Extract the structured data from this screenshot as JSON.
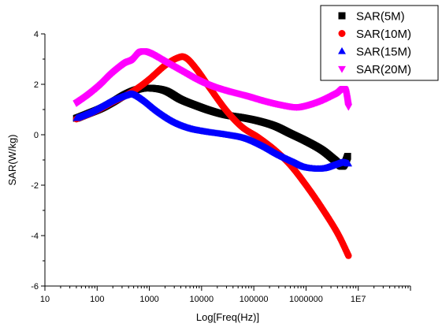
{
  "chart_data": {
    "type": "line",
    "xlabel": "Log[Freq(Hz)]",
    "ylabel": "SAR(W/kg)",
    "xscale": "log",
    "xlim": [
      10,
      100000000
    ],
    "ylim": [
      -6,
      4
    ],
    "grid": false,
    "legend_position": "top-right",
    "x_ticks": [
      {
        "value": 10,
        "label": "10"
      },
      {
        "value": 100,
        "label": "100"
      },
      {
        "value": 1000,
        "label": "1000"
      },
      {
        "value": 10000,
        "label": "10000"
      },
      {
        "value": 100000,
        "label": "100000"
      },
      {
        "value": 1000000,
        "label": "1000000"
      },
      {
        "value": 10000000,
        "label": "1E7"
      }
    ],
    "y_ticks": [
      {
        "value": -6,
        "label": "-6"
      },
      {
        "value": -4,
        "label": "-4"
      },
      {
        "value": -2,
        "label": "-2"
      },
      {
        "value": 0,
        "label": "0"
      },
      {
        "value": 2,
        "label": "2"
      },
      {
        "value": 4,
        "label": "4"
      }
    ],
    "series": [
      {
        "name": "SAR(5M)",
        "color": "#000000",
        "marker": "square",
        "points": [
          [
            40,
            0.65
          ],
          [
            70,
            0.85
          ],
          [
            120,
            1.05
          ],
          [
            200,
            1.3
          ],
          [
            350,
            1.6
          ],
          [
            600,
            1.8
          ],
          [
            1000,
            1.85
          ],
          [
            2000,
            1.75
          ],
          [
            4000,
            1.4
          ],
          [
            8000,
            1.15
          ],
          [
            15000,
            0.95
          ],
          [
            30000,
            0.78
          ],
          [
            60000,
            0.68
          ],
          [
            120000,
            0.55
          ],
          [
            250000,
            0.35
          ],
          [
            500000,
            0.05
          ],
          [
            1000000,
            -0.25
          ],
          [
            2000000,
            -0.6
          ],
          [
            3500000,
            -1.0
          ],
          [
            5000000,
            -1.25
          ],
          [
            6300000,
            -0.85
          ]
        ]
      },
      {
        "name": "SAR(10M)",
        "color": "#ff0000",
        "marker": "circle",
        "points": [
          [
            40,
            0.62
          ],
          [
            70,
            0.82
          ],
          [
            120,
            1.05
          ],
          [
            200,
            1.3
          ],
          [
            350,
            1.55
          ],
          [
            600,
            1.85
          ],
          [
            1000,
            2.2
          ],
          [
            2000,
            2.75
          ],
          [
            3500,
            3.05
          ],
          [
            5000,
            3.05
          ],
          [
            8000,
            2.6
          ],
          [
            15000,
            1.8
          ],
          [
            30000,
            0.95
          ],
          [
            60000,
            0.3
          ],
          [
            120000,
            -0.1
          ],
          [
            250000,
            -0.6
          ],
          [
            500000,
            -1.2
          ],
          [
            1000000,
            -2.0
          ],
          [
            2000000,
            -2.9
          ],
          [
            4000000,
            -3.9
          ],
          [
            6500000,
            -4.8
          ]
        ]
      },
      {
        "name": "SAR(15M)",
        "color": "#0000ff",
        "marker": "triangle-up",
        "points": [
          [
            40,
            0.65
          ],
          [
            70,
            0.85
          ],
          [
            120,
            1.1
          ],
          [
            200,
            1.35
          ],
          [
            350,
            1.55
          ],
          [
            500,
            1.6
          ],
          [
            800,
            1.35
          ],
          [
            1500,
            0.9
          ],
          [
            3000,
            0.5
          ],
          [
            6000,
            0.25
          ],
          [
            12000,
            0.12
          ],
          [
            30000,
            0.0
          ],
          [
            70000,
            -0.15
          ],
          [
            150000,
            -0.45
          ],
          [
            300000,
            -0.8
          ],
          [
            600000,
            -1.1
          ],
          [
            1000000,
            -1.3
          ],
          [
            2000000,
            -1.35
          ],
          [
            3500000,
            -1.2
          ],
          [
            5000000,
            -1.1
          ],
          [
            6500000,
            -1.15
          ]
        ]
      },
      {
        "name": "SAR(20M)",
        "color": "#ff00ff",
        "marker": "triangle-down",
        "points": [
          [
            40,
            1.25
          ],
          [
            70,
            1.6
          ],
          [
            120,
            2.0
          ],
          [
            200,
            2.45
          ],
          [
            350,
            2.85
          ],
          [
            500,
            3.0
          ],
          [
            700,
            3.3
          ],
          [
            1000,
            3.25
          ],
          [
            2000,
            2.9
          ],
          [
            4000,
            2.55
          ],
          [
            8000,
            2.2
          ],
          [
            15000,
            1.95
          ],
          [
            30000,
            1.75
          ],
          [
            70000,
            1.55
          ],
          [
            150000,
            1.35
          ],
          [
            300000,
            1.2
          ],
          [
            600000,
            1.1
          ],
          [
            1000000,
            1.15
          ],
          [
            2000000,
            1.35
          ],
          [
            4000000,
            1.65
          ],
          [
            5500000,
            1.8
          ],
          [
            6500000,
            1.1
          ]
        ]
      }
    ]
  }
}
